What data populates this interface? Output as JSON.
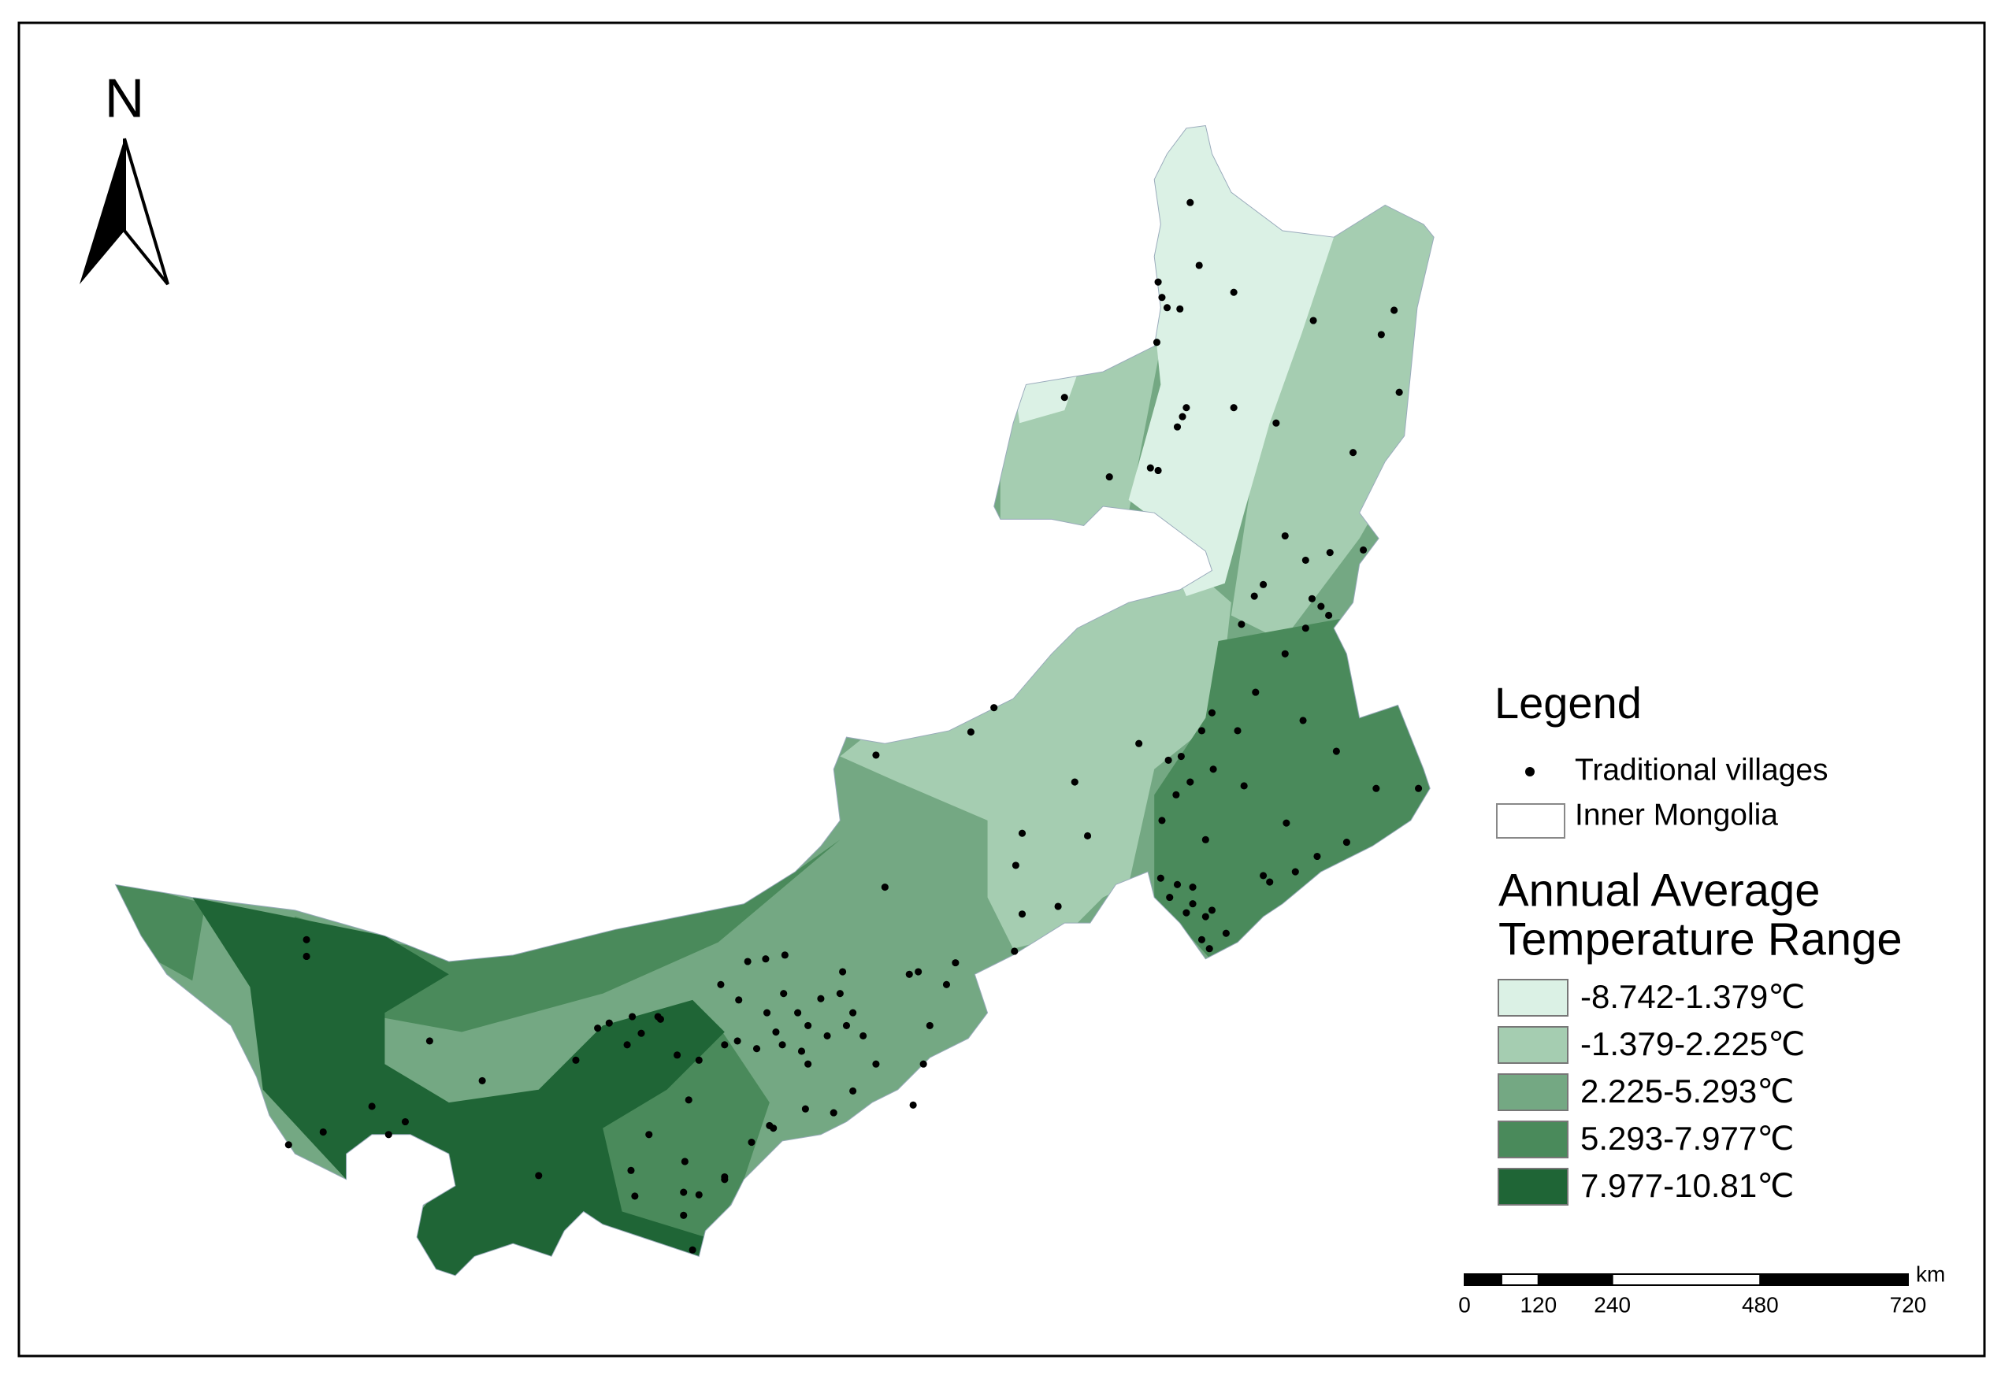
{
  "north_arrow": {
    "label": "N"
  },
  "legend": {
    "title": "Legend",
    "items": [
      {
        "label": "Traditional villages"
      },
      {
        "label": "Inner Mongolia"
      }
    ],
    "temperature": {
      "title_lines": [
        "Annual Average",
        "Temperature Range"
      ],
      "classes": [
        {
          "label": "-8.742-1.379℃",
          "color": "#dbf1e5"
        },
        {
          "label": "-1.379-2.225℃",
          "color": "#a5cdb1"
        },
        {
          "label": "2.225-5.293℃",
          "color": "#74a883"
        },
        {
          "label": "5.293-7.977℃",
          "color": "#4a8a5b"
        },
        {
          "label": "7.977-10.81℃",
          "color": "#1f6536"
        }
      ]
    }
  },
  "scale_bar": {
    "unit": "km",
    "ticks": [
      0,
      120,
      240,
      480,
      720
    ]
  }
}
